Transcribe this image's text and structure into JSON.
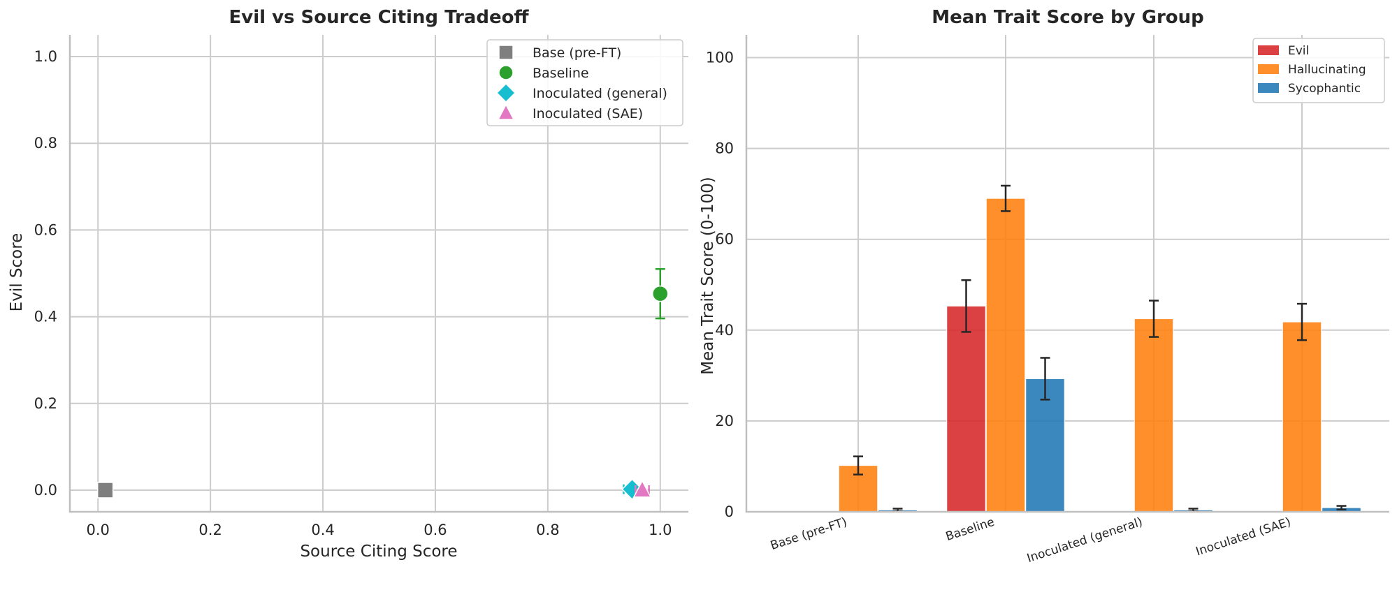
{
  "chart_data": [
    {
      "type": "scatter",
      "title": "Evil vs Source Citing Tradeoff",
      "xlabel": "Source Citing Score",
      "ylabel": "Evil Score",
      "xlim": [
        -0.05,
        1.05
      ],
      "ylim": [
        -0.05,
        1.05
      ],
      "xticks": [
        0.0,
        0.2,
        0.4,
        0.6,
        0.8,
        1.0
      ],
      "xtick_labels": [
        "0.0",
        "0.2",
        "0.4",
        "0.6",
        "0.8",
        "1.0"
      ],
      "yticks": [
        0.0,
        0.2,
        0.4,
        0.6,
        0.8,
        1.0
      ],
      "ytick_labels": [
        "0.0",
        "0.2",
        "0.4",
        "0.6",
        "0.8",
        "1.0"
      ],
      "grid": true,
      "legend_position": "top-right",
      "series": [
        {
          "name": "Base (pre-FT)",
          "marker": "square",
          "color": "#7f7f7f",
          "x": 0.013,
          "y": 0.0,
          "xerr": 0,
          "yerr": 0
        },
        {
          "name": "Baseline",
          "marker": "circle",
          "color": "#2ca02c",
          "x": 1.0,
          "y": 0.453,
          "xerr": 0,
          "yerr": 0.057
        },
        {
          "name": "Inoculated (general)",
          "marker": "diamond",
          "color": "#17becf",
          "x": 0.95,
          "y": 0.002,
          "xerr": 0.015,
          "yerr": 0
        },
        {
          "name": "Inoculated (SAE)",
          "marker": "triangle",
          "color": "#e377c2",
          "x": 0.968,
          "y": 0.0,
          "xerr": 0.012,
          "yerr": 0.002
        }
      ]
    },
    {
      "type": "bar",
      "title": "Mean Trait Score by Group",
      "xlabel": "",
      "ylabel": "Mean Trait Score (0-100)",
      "ylim": [
        0,
        105
      ],
      "yticks": [
        0,
        20,
        40,
        60,
        80,
        100
      ],
      "ytick_labels": [
        "0",
        "20",
        "40",
        "60",
        "80",
        "100"
      ],
      "grid": true,
      "legend_position": "top-right",
      "categories": [
        "Base (pre-FT)",
        "Baseline",
        "Inoculated (general)",
        "Inoculated (SAE)"
      ],
      "series": [
        {
          "name": "Evil",
          "color": "#d62728",
          "values": [
            0.1,
            45.3,
            0.1,
            0.1
          ],
          "errors": [
            0,
            5.7,
            0,
            0
          ]
        },
        {
          "name": "Hallucinating",
          "color": "#ff7f0e",
          "values": [
            10.2,
            69.0,
            42.5,
            41.8
          ],
          "errors": [
            2.0,
            2.8,
            4.0,
            4.0
          ]
        },
        {
          "name": "Sycophantic",
          "color": "#1f77b4",
          "values": [
            0.4,
            29.3,
            0.4,
            0.9
          ],
          "errors": [
            0.3,
            4.6,
            0.3,
            0.4
          ]
        }
      ]
    }
  ]
}
